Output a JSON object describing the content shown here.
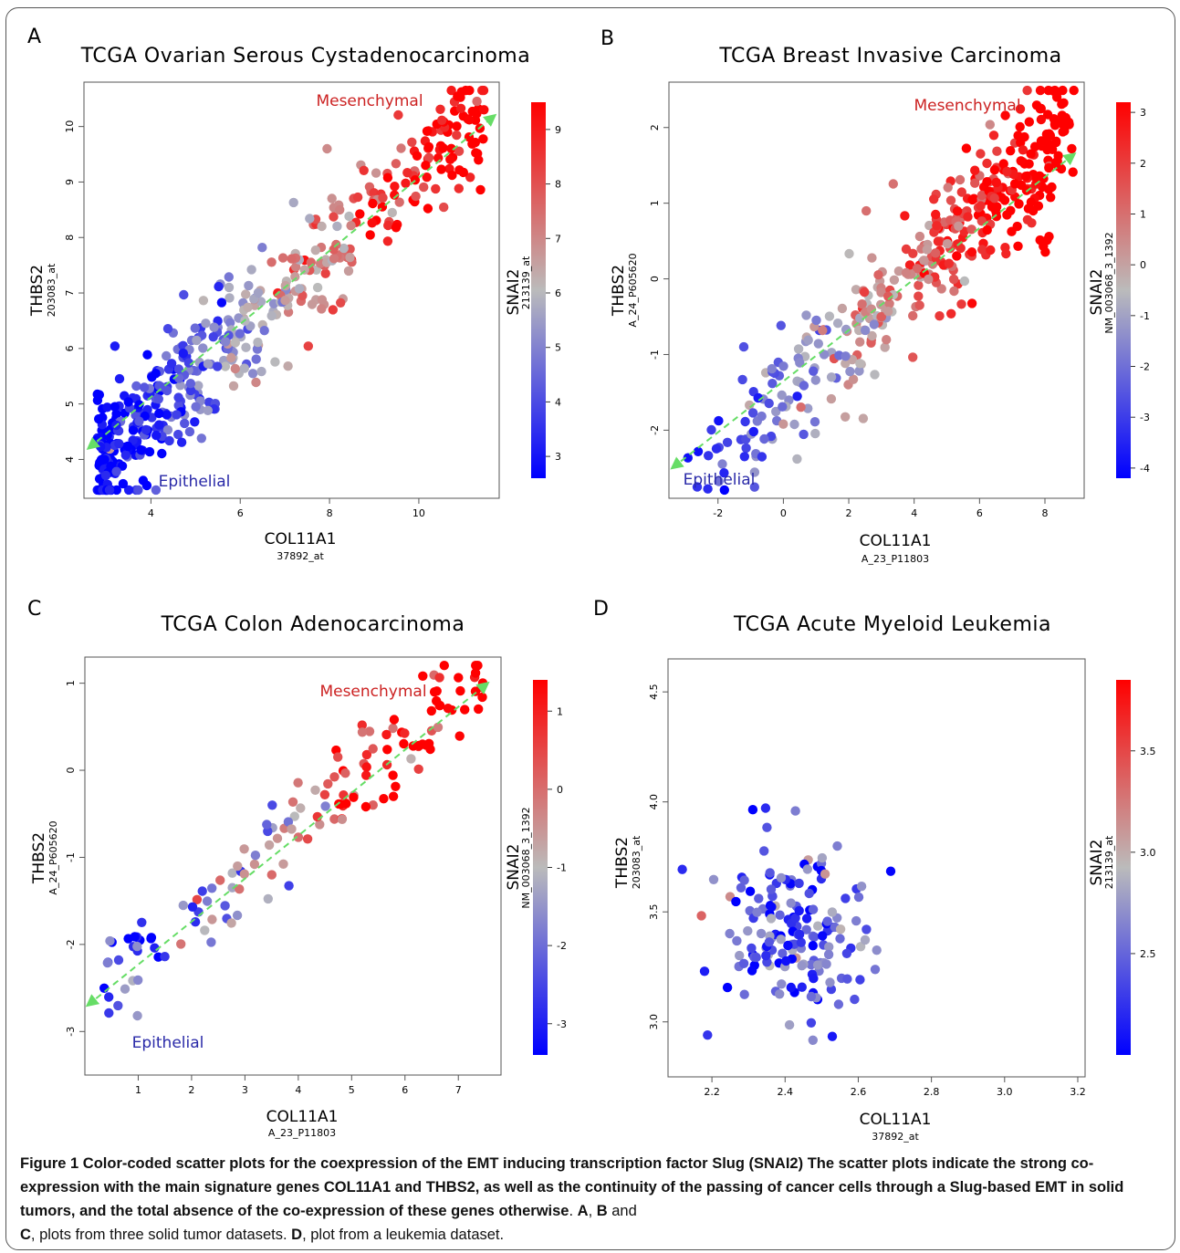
{
  "panels": [
    {
      "letter": "A",
      "title": "TCGA Ovarian Serous Cystadenocarcinoma",
      "xlabel": "COL11A1",
      "xsub": "37892_at",
      "ylabel": "THBS2",
      "ysub": "203083_at",
      "cblabel": "SNAI2",
      "cbsub": "213139_at",
      "mes": "Mesenchymal",
      "epi": "Epithelial"
    },
    {
      "letter": "B",
      "title": "TCGA Breast Invasive Carcinoma",
      "xlabel": "COL11A1",
      "xsub": "A_23_P11803",
      "ylabel": "THBS2",
      "ysub": "A_24_P605620",
      "cblabel": "SNAI2",
      "cbsub": "NM_003068_3_1392",
      "mes": "Mesenchymal",
      "epi": "Epithelial"
    },
    {
      "letter": "C",
      "title": "TCGA Colon Adenocarcinoma",
      "xlabel": "COL11A1",
      "xsub": "A_23_P11803",
      "ylabel": "THBS2",
      "ysub": "A_24_P605620",
      "cblabel": "SNAI2",
      "cbsub": "NM_003068_3_1392",
      "mes": "Mesenchymal",
      "epi": "Epithelial"
    },
    {
      "letter": "D",
      "title": "TCGA Acute Myeloid Leukemia",
      "xlabel": "COL11A1",
      "xsub": "37892_at",
      "ylabel": "THBS2",
      "ysub": "203083_at",
      "cblabel": "SNAI2",
      "cbsub": "213139_at",
      "mes": "",
      "epi": ""
    }
  ],
  "caption": {
    "figure_label": "Figure 1",
    "title": "Color-coded scatter plots for the coexpression of the EMT inducing transcription factor Slug (SNAI2) The scatter plots indicate the strong co-expression with the main signature genes COL11A1 and THBS2, as well as the continuity of the passing of cancer cells through a Slug-based EMT in solid tumors, and the total absence of the co-expression of these genes otherwise",
    "sep1": ". ",
    "a": "A",
    "comma": ", ",
    "b": "B",
    "and": " and ",
    "c": "C",
    "c_text": ", plots from three solid tumor datasets. ",
    "d": "D",
    "d_text": ", plot from a leukemia dataset."
  },
  "colors": {
    "low": "#0000ff",
    "mid": "#bbbbbb",
    "high": "#ff0000",
    "mes_text": "#cc2222",
    "epi_text": "#2a2aa8",
    "trend": "#66dd66"
  },
  "chart_data": [
    {
      "type": "scatter",
      "title": "TCGA Ovarian Serous Cystadenocarcinoma",
      "xlabel": "COL11A1",
      "ylabel": "THBS2",
      "xlim": [
        2.5,
        11.8
      ],
      "ylim": [
        3.3,
        10.8
      ],
      "xticks": [
        4,
        6,
        8,
        10
      ],
      "yticks": [
        4,
        5,
        6,
        7,
        8,
        9,
        10
      ],
      "color_scale": {
        "label": "SNAI2",
        "range": [
          2.6,
          9.5
        ],
        "ticks": [
          3,
          4,
          5,
          6,
          7,
          8,
          9
        ]
      },
      "trend": [
        [
          2.6,
          4.2
        ],
        [
          11.7,
          10.2
        ]
      ],
      "n_points": 520,
      "gen": {
        "slope": 0.72,
        "intercept": 1.95,
        "spread": 0.55,
        "cslope": 0.95,
        "cint": -0.4,
        "seed": 11
      },
      "annotations": {
        "mesenchymal_at": [
          8.8,
          10.3
        ],
        "epithelial_at": [
          4.2,
          3.55
        ]
      }
    },
    {
      "type": "scatter",
      "title": "TCGA Breast Invasive Carcinoma",
      "xlabel": "COL11A1",
      "ylabel": "THBS2",
      "xlim": [
        -3.5,
        9.2
      ],
      "ylim": [
        -2.9,
        2.6
      ],
      "xticks": [
        -2,
        0,
        2,
        4,
        6,
        8
      ],
      "yticks": [
        -2,
        -1,
        0,
        1,
        2
      ],
      "color_scale": {
        "label": "SNAI2",
        "range": [
          -4.2,
          3.2
        ],
        "ticks": [
          -4,
          -3,
          -2,
          -1,
          0,
          1,
          2,
          3
        ]
      },
      "trend": [
        [
          -3.4,
          -2.5
        ],
        [
          8.9,
          1.65
        ]
      ],
      "n_points": 430,
      "gen": {
        "slope": 0.4,
        "intercept": -1.5,
        "spread": 0.45,
        "cslope": 0.9,
        "cint": -4.0,
        "seed": 23
      },
      "annotations": {
        "mesenchymal_at": [
          6.9,
          2.3
        ],
        "epithelial_at": [
          -1.3,
          -2.75
        ]
      }
    },
    {
      "type": "scatter",
      "title": "TCGA Colon Adenocarcinoma",
      "xlabel": "COL11A1",
      "ylabel": "THBS2",
      "xlim": [
        0.0,
        7.8
      ],
      "ylim": [
        -3.5,
        1.3
      ],
      "xticks": [
        1,
        2,
        3,
        4,
        5,
        6,
        7
      ],
      "yticks": [
        -3,
        -2,
        -1,
        0,
        1
      ],
      "color_scale": {
        "label": "SNAI2",
        "range": [
          -3.4,
          1.4
        ],
        "ticks": [
          -3,
          -2,
          -1,
          0,
          1
        ]
      },
      "trend": [
        [
          0.05,
          -2.7
        ],
        [
          7.55,
          1.0
        ]
      ],
      "n_points": 150,
      "gen": {
        "slope": 0.5,
        "intercept": -2.7,
        "spread": 0.3,
        "cslope": 0.75,
        "cint": -3.3,
        "seed": 37
      },
      "annotations": {
        "mesenchymal_at": [
          6.25,
          0.9
        ],
        "epithelial_at": [
          1.55,
          -3.15
        ]
      }
    },
    {
      "type": "scatter",
      "title": "TCGA Acute Myeloid Leukemia",
      "xlabel": "COL11A1",
      "ylabel": "THBS2",
      "xlim": [
        2.08,
        3.22
      ],
      "ylim": [
        2.75,
        4.65
      ],
      "xticks": [
        2.2,
        2.4,
        2.6,
        2.8,
        3.0,
        3.2
      ],
      "yticks": [
        3.0,
        3.5,
        4.0,
        4.5
      ],
      "color_scale": {
        "label": "SNAI2",
        "range": [
          2.0,
          3.85
        ],
        "ticks": [
          2.5,
          3.0,
          3.5
        ]
      },
      "trend": null,
      "n_points": 170,
      "gen": {
        "cx": 2.42,
        "cy": 3.42,
        "sx": 0.12,
        "sy": 0.22,
        "seed": 53
      }
    }
  ]
}
